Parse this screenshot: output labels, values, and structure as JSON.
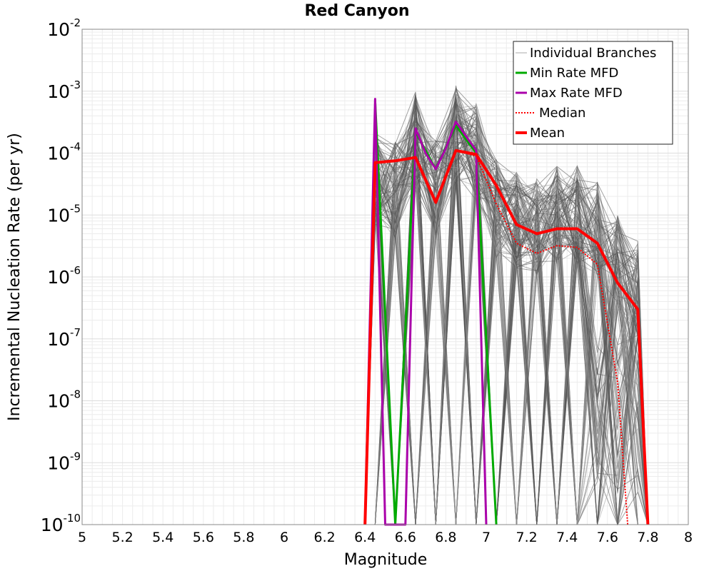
{
  "chart_data": {
    "type": "line",
    "title": "Red Canyon",
    "xlabel": "Magnitude",
    "ylabel": "Incremental Nucleation Rate (per yr)",
    "xlim": [
      5,
      8
    ],
    "ylim": [
      1e-10,
      0.01
    ],
    "yscale": "log",
    "grid": true,
    "legend_position": "top-right",
    "x_ticks": [
      "5",
      "5.2",
      "5.4",
      "5.6",
      "5.8",
      "6",
      "6.2",
      "6.4",
      "6.6",
      "6.8",
      "7",
      "7.2",
      "7.4",
      "7.6",
      "7.8",
      "8"
    ],
    "y_ticks": [
      {
        "base": "10",
        "exp": "-2"
      },
      {
        "base": "10",
        "exp": "-3"
      },
      {
        "base": "10",
        "exp": "-4"
      },
      {
        "base": "10",
        "exp": "-5"
      },
      {
        "base": "10",
        "exp": "-6"
      },
      {
        "base": "10",
        "exp": "-7"
      },
      {
        "base": "10",
        "exp": "-8"
      },
      {
        "base": "10",
        "exp": "-9"
      },
      {
        "base": "10",
        "exp": "-10"
      }
    ],
    "series": [
      {
        "name": "Individual Branches",
        "color": "#555555",
        "style": "thin",
        "x": [
          6.45,
          6.55,
          6.65,
          6.75,
          6.85,
          6.95,
          7.05,
          7.15,
          7.25,
          7.35,
          7.45,
          7.55,
          7.65,
          7.75
        ],
        "note_envelope": "many overlapping branch curves"
      },
      {
        "name": "Min Rate MFD",
        "color": "#00aa00",
        "x": [
          6.45,
          6.55,
          6.65,
          6.75,
          6.85,
          6.95,
          7.05
        ],
        "values": [
          0.0007,
          1e-10,
          0.00022,
          5.5e-05,
          0.00028,
          0.0001,
          1e-10
        ]
      },
      {
        "name": "Max Rate MFD",
        "color": "#aa00aa",
        "x": [
          6.4,
          6.45,
          6.5,
          6.6,
          6.65,
          6.7,
          6.75,
          6.8,
          6.85,
          6.95,
          7.0
        ],
        "values": [
          1e-10,
          0.00075,
          1e-10,
          1e-10,
          0.00025,
          0.0001,
          5.5e-05,
          0.00012,
          0.00032,
          0.00011,
          1e-10
        ]
      },
      {
        "name": "Median",
        "color": "#ff0000",
        "style": "dotted",
        "x": [
          6.4,
          6.45,
          6.55,
          6.65,
          6.75,
          6.85,
          6.95,
          7.05,
          7.15,
          7.25,
          7.35,
          7.45,
          7.55,
          7.65,
          7.7
        ],
        "values": [
          1e-10,
          7e-05,
          7.5e-05,
          8.5e-05,
          1.6e-05,
          0.00011,
          9e-05,
          1.5e-05,
          3.5e-06,
          2.4e-06,
          3.2e-06,
          3e-06,
          1.6e-06,
          2e-08,
          1e-10
        ]
      },
      {
        "name": "Mean",
        "color": "#ff0000",
        "style": "thick",
        "x": [
          6.4,
          6.45,
          6.55,
          6.65,
          6.75,
          6.85,
          6.95,
          7.05,
          7.15,
          7.25,
          7.35,
          7.45,
          7.55,
          7.65,
          7.75,
          7.8
        ],
        "values": [
          1e-10,
          7e-05,
          7.5e-05,
          8.5e-05,
          1.6e-05,
          0.00011,
          9.5e-05,
          3e-05,
          7e-06,
          5e-06,
          6e-06,
          6e-06,
          3.5e-06,
          8e-07,
          3e-07,
          1e-10
        ]
      }
    ]
  }
}
